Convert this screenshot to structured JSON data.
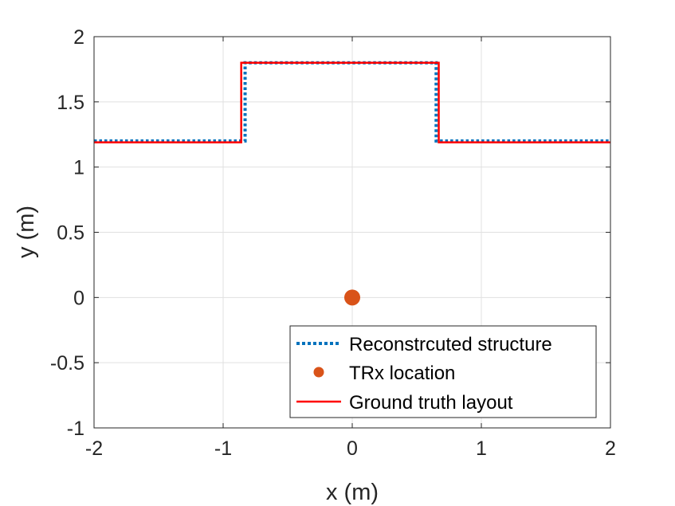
{
  "chart_data": {
    "type": "line",
    "title": "",
    "xlabel": "x (m)",
    "ylabel": "y (m)",
    "xlim": [
      -2,
      2
    ],
    "ylim": [
      -1,
      2
    ],
    "xticks": [
      -2,
      -1,
      0,
      1,
      2
    ],
    "yticks": [
      -1,
      -0.5,
      0,
      0.5,
      1,
      1.5,
      2
    ],
    "xtick_labels": [
      "-2",
      "-1",
      "0",
      "1",
      "2"
    ],
    "ytick_labels": [
      "-1",
      "-0.5",
      "0",
      "0.5",
      "1",
      "1.5",
      "2"
    ],
    "grid": true,
    "legend_position": "bottom-right",
    "series": [
      {
        "name": "Reconstrcuted structure",
        "style": "dotted",
        "color": "#0072BD",
        "x": [
          -2,
          -0.83,
          -0.83,
          0.65,
          0.65,
          2
        ],
        "y": [
          1.2,
          1.2,
          1.8,
          1.8,
          1.2,
          1.2
        ]
      },
      {
        "name": "TRx location",
        "style": "marker",
        "color": "#D95319",
        "x": [
          0
        ],
        "y": [
          0
        ]
      },
      {
        "name": "Ground truth layout",
        "style": "solid",
        "color": "#FF0000",
        "x": [
          -2,
          -0.86,
          -0.86,
          0.67,
          0.67,
          2
        ],
        "y": [
          1.19,
          1.19,
          1.8,
          1.8,
          1.19,
          1.19
        ]
      }
    ]
  }
}
